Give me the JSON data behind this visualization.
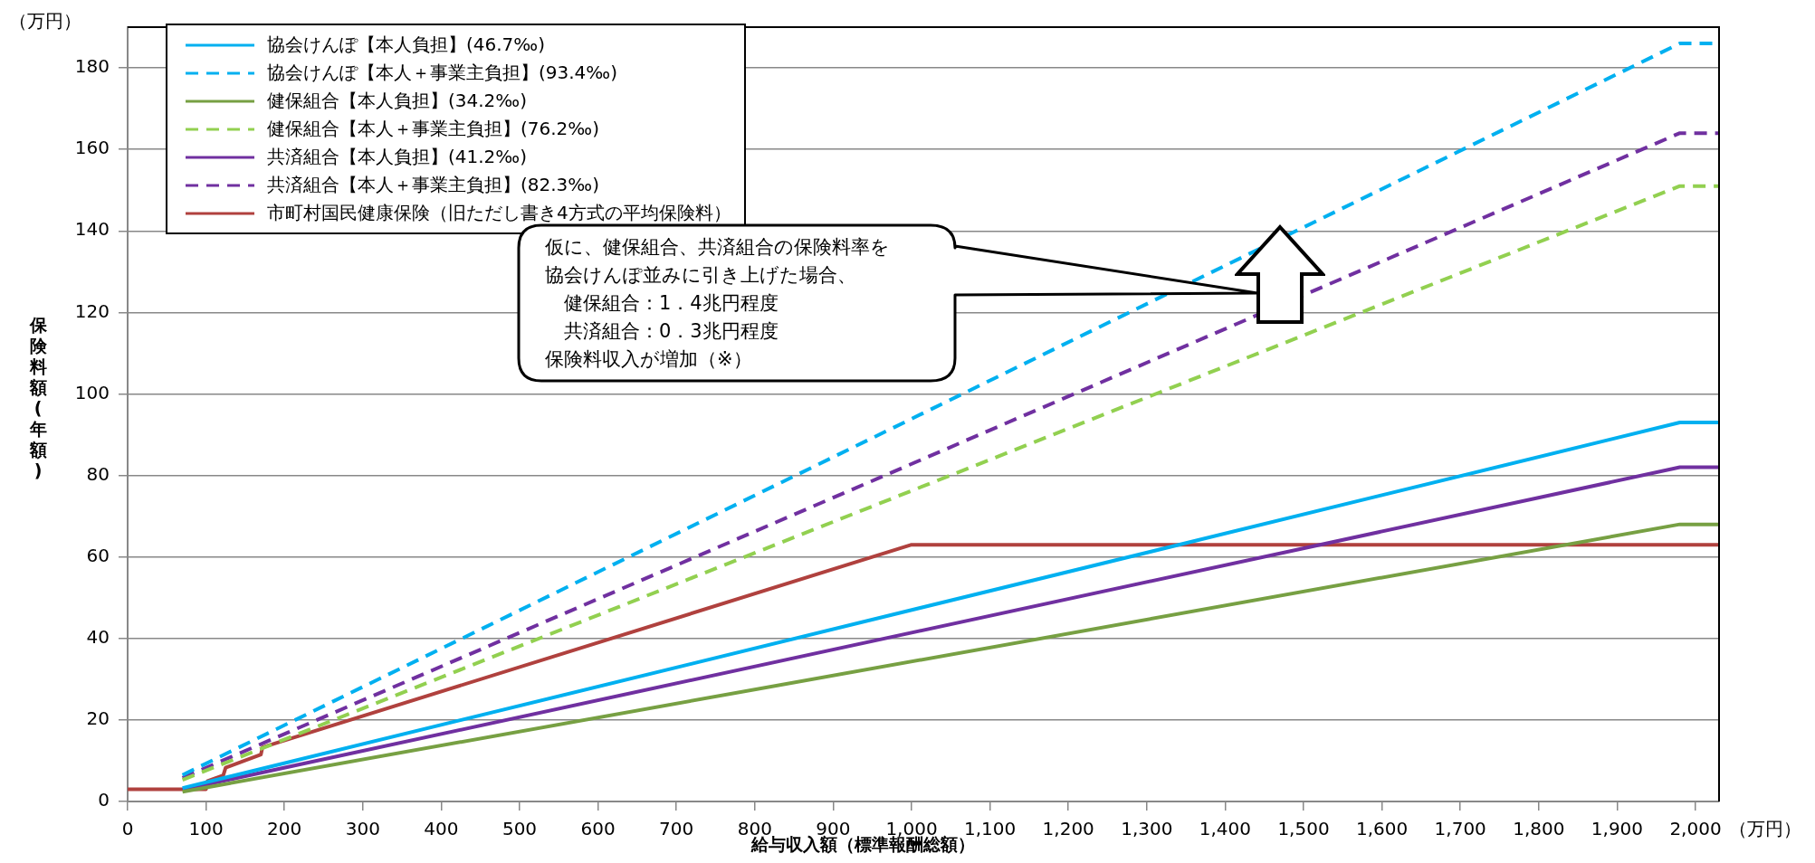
{
  "chart_data": {
    "type": "line",
    "ylabel": "保険料額(年額)",
    "xlabel": "給与収入額（標準報酬総額）",
    "annotations": [
      "（万円）",
      "（万円）",
      "仮に、健保組合、共済組合の保険料率を",
      "協会けんぽ並みに引き上げた場合、",
      "　健保組合：1．4兆円程度",
      "　共済組合：0．3兆円程度",
      "保険料収入が増加（※）"
    ],
    "xlim": [
      0,
      2030
    ],
    "ylim": [
      0,
      190
    ],
    "xticks": [
      0,
      100,
      200,
      300,
      400,
      500,
      600,
      700,
      800,
      900,
      {
        "value": 1000,
        "label": "1,000"
      },
      {
        "value": 1100,
        "label": "1,100"
      },
      {
        "value": 1200,
        "label": "1,200"
      },
      {
        "value": 1300,
        "label": "1,300"
      },
      {
        "value": 1400,
        "label": "1,400"
      },
      {
        "value": 1500,
        "label": "1,500"
      },
      {
        "value": 1600,
        "label": "1,600"
      },
      {
        "value": 1700,
        "label": "1,700"
      },
      {
        "value": 1800,
        "label": "1,800"
      },
      {
        "value": 1900,
        "label": "1,900"
      },
      {
        "value": 2000,
        "label": "2,000"
      }
    ],
    "yticks": [
      0,
      20,
      40,
      60,
      80,
      100,
      120,
      140,
      160,
      180
    ],
    "grid": "y",
    "legend": "top left",
    "marker": "none",
    "series": [
      {
        "name": "協会けんぽ【本人負担】(46.7‰)",
        "color": "#00b0f0",
        "line_style": "solid",
        "x": [
          70,
          1980,
          2030
        ],
        "values": [
          3.3,
          93,
          93
        ]
      },
      {
        "name": "協会けんぽ【本人＋事業主負担】(93.4‰)",
        "color": "#00b0f0",
        "line_style": "dashed",
        "x": [
          70,
          1980,
          2030
        ],
        "values": [
          6.5,
          186,
          186
        ]
      },
      {
        "name": "健保組合【本人負担】(34.2‰)",
        "color": "#77a043",
        "line_style": "solid",
        "x": [
          70,
          1980,
          2030
        ],
        "values": [
          2.4,
          68,
          68
        ]
      },
      {
        "name": "健保組合【本人＋事業主負担】(76.2‰)",
        "color": "#92d050",
        "line_style": "dashed",
        "x": [
          70,
          1980,
          2030
        ],
        "values": [
          5.3,
          151,
          151
        ]
      },
      {
        "name": "共済組合【本人負担】(41.2‰)",
        "color": "#7030a0",
        "line_style": "solid",
        "x": [
          70,
          1980,
          2030
        ],
        "values": [
          2.9,
          82,
          82
        ]
      },
      {
        "name": "共済組合【本人＋事業主負担】(82.3‰)",
        "color": "#7030a0",
        "line_style": "dashed",
        "x": [
          70,
          1980,
          2030
        ],
        "values": [
          5.8,
          164,
          164
        ]
      },
      {
        "name": "市町村国民健康保険（旧ただし書き4方式の平均保険料）",
        "color": "#b0413e",
        "line_style": "solid",
        "x": [
          0,
          100,
          102,
          122,
          125,
          170,
          172,
          1000,
          2030
        ],
        "values": [
          3,
          3,
          5,
          6.4,
          8.3,
          11.5,
          13.3,
          63,
          63
        ]
      }
    ]
  }
}
